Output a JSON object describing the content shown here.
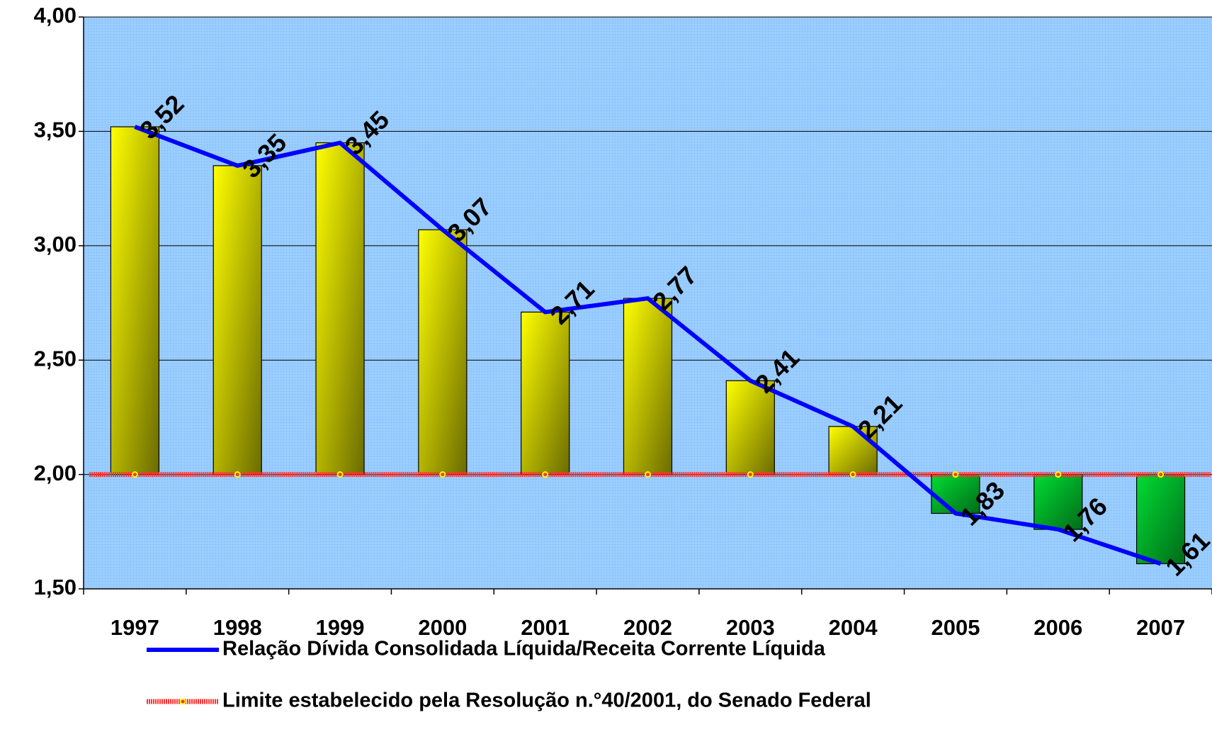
{
  "chart_data": {
    "type": "bar_line",
    "categories": [
      "1997",
      "1998",
      "1999",
      "2000",
      "2001",
      "2002",
      "2003",
      "2004",
      "2005",
      "2006",
      "2007"
    ],
    "series": [
      {
        "name": "Relação Dívida Consolidada Líquida/Receita Corrente Líquida",
        "color": "#0000ff",
        "values": [
          3.52,
          3.35,
          3.45,
          3.07,
          2.71,
          2.77,
          2.41,
          2.21,
          1.83,
          1.76,
          1.61
        ],
        "value_labels": [
          "3,52",
          "3,35",
          "3,45",
          "3,07",
          "2,71",
          "2,77",
          "2,41",
          "2,21",
          "1,83",
          "1,76",
          "1,61"
        ]
      },
      {
        "name": "Limite estabelecido pela Resolução n.°40/2001, do  Senado Federal",
        "color": "#ff3333",
        "values": [
          2,
          2,
          2,
          2,
          2,
          2,
          2,
          2,
          2,
          2,
          2
        ]
      }
    ],
    "bar_color_above": "#ffff00",
    "bar_color_below": "#00dd33",
    "ylim": [
      1.5,
      4
    ],
    "yticks": [
      {
        "value": 1.5,
        "label": "1,50"
      },
      {
        "value": 2,
        "label": "2,00"
      },
      {
        "value": 2.5,
        "label": "2,50"
      },
      {
        "value": 3,
        "label": "3,00"
      },
      {
        "value": 3.5,
        "label": "3,50"
      },
      {
        "value": 4,
        "label": "4,00"
      }
    ],
    "grid": true
  }
}
